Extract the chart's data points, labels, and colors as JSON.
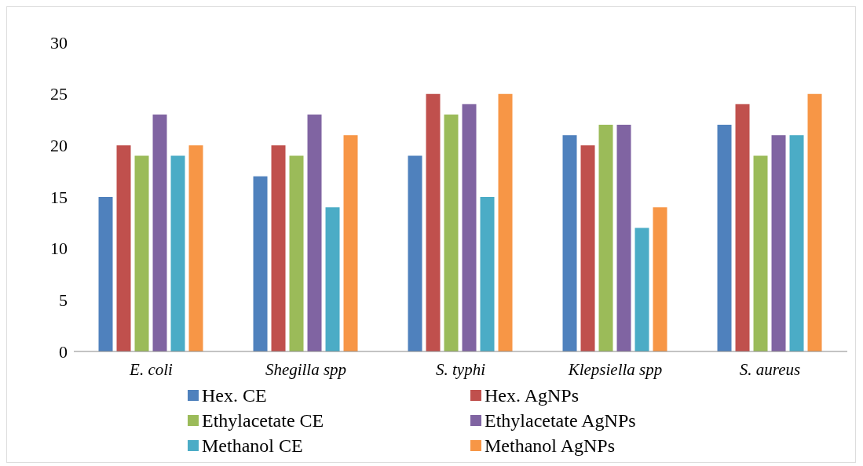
{
  "chart_data": {
    "type": "bar",
    "categories": [
      "E. coli",
      "Shegilla spp",
      "S. typhi",
      "Klepsiella spp",
      "S. aureus"
    ],
    "series": [
      {
        "name": "Hex. CE",
        "color": "#4f81bd",
        "values": [
          15,
          17,
          19,
          21,
          22
        ]
      },
      {
        "name": "Hex. AgNPs",
        "color": "#c0504d",
        "values": [
          20,
          20,
          25,
          20,
          24
        ]
      },
      {
        "name": "Ethylacetate CE",
        "color": "#9bbb59",
        "values": [
          19,
          19,
          23,
          22,
          19
        ]
      },
      {
        "name": "Ethylacetate AgNPs",
        "color": "#8064a2",
        "values": [
          23,
          23,
          24,
          22,
          21
        ]
      },
      {
        "name": "Methanol CE",
        "color": "#4bacc6",
        "values": [
          19,
          14,
          15,
          12,
          21
        ]
      },
      {
        "name": "Methanol AgNPs",
        "color": "#f79646",
        "values": [
          20,
          21,
          25,
          14,
          25
        ]
      }
    ],
    "ylim": [
      0,
      30
    ],
    "yticks": [
      0,
      5,
      10,
      15,
      20,
      25,
      30
    ],
    "grid": false,
    "legend": "bottom"
  }
}
